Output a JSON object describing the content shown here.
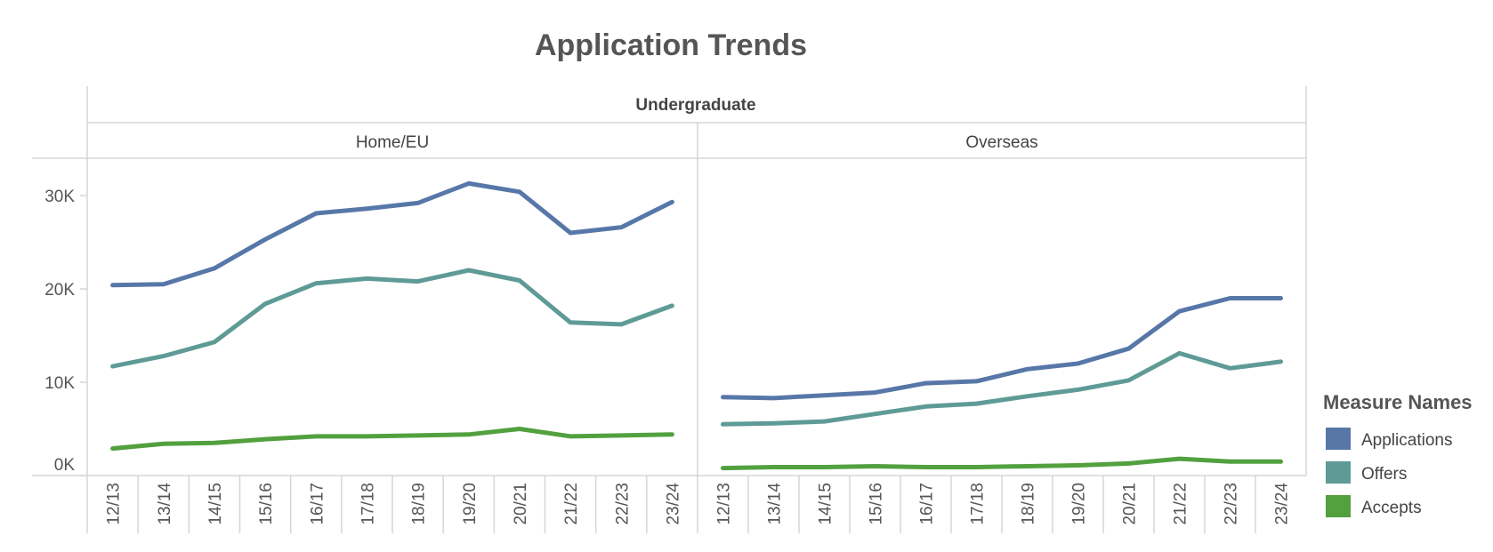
{
  "chart_data": {
    "type": "line",
    "title": "Application Trends",
    "group_header": "Undergraduate",
    "categories": [
      "12/13",
      "13/14",
      "14/15",
      "15/16",
      "16/17",
      "17/18",
      "18/19",
      "19/20",
      "20/21",
      "21/22",
      "22/23",
      "23/24"
    ],
    "y_ticks": [
      {
        "value": 0,
        "label": "0K"
      },
      {
        "value": 10000,
        "label": "10K"
      },
      {
        "value": 20000,
        "label": "20K"
      },
      {
        "value": 30000,
        "label": "30K"
      }
    ],
    "ylim": [
      0,
      34000
    ],
    "grid": false,
    "legend": {
      "title": "Measure Names",
      "placement": "right"
    },
    "panels": [
      {
        "name": "Home/EU",
        "series": [
          {
            "name": "Applications",
            "color": "#5777a8",
            "values": [
              20400,
              20500,
              22200,
              25300,
              28100,
              28600,
              29200,
              31300,
              30400,
              26000,
              26600,
              29300
            ]
          },
          {
            "name": "Offers",
            "color": "#5f9b96",
            "values": [
              11700,
              12800,
              14300,
              18400,
              20600,
              21100,
              20800,
              22000,
              20900,
              16400,
              16200,
              18200
            ]
          },
          {
            "name": "Accepts",
            "color": "#52a03e",
            "values": [
              2900,
              3400,
              3500,
              3900,
              4200,
              4200,
              4300,
              4400,
              5000,
              4200,
              4300,
              4400
            ]
          }
        ]
      },
      {
        "name": "Overseas",
        "series": [
          {
            "name": "Applications",
            "color": "#5777a8",
            "values": [
              8400,
              8300,
              8600,
              8900,
              9900,
              10100,
              11400,
              12000,
              13600,
              17600,
              19000,
              19000
            ]
          },
          {
            "name": "Offers",
            "color": "#5f9b96",
            "values": [
              5500,
              5600,
              5800,
              6600,
              7400,
              7700,
              8500,
              9200,
              10200,
              13100,
              11500,
              12200
            ]
          },
          {
            "name": "Accepts",
            "color": "#52a03e",
            "values": [
              800,
              900,
              900,
              1000,
              900,
              900,
              1000,
              1100,
              1300,
              1800,
              1500,
              1500
            ]
          }
        ]
      }
    ]
  }
}
